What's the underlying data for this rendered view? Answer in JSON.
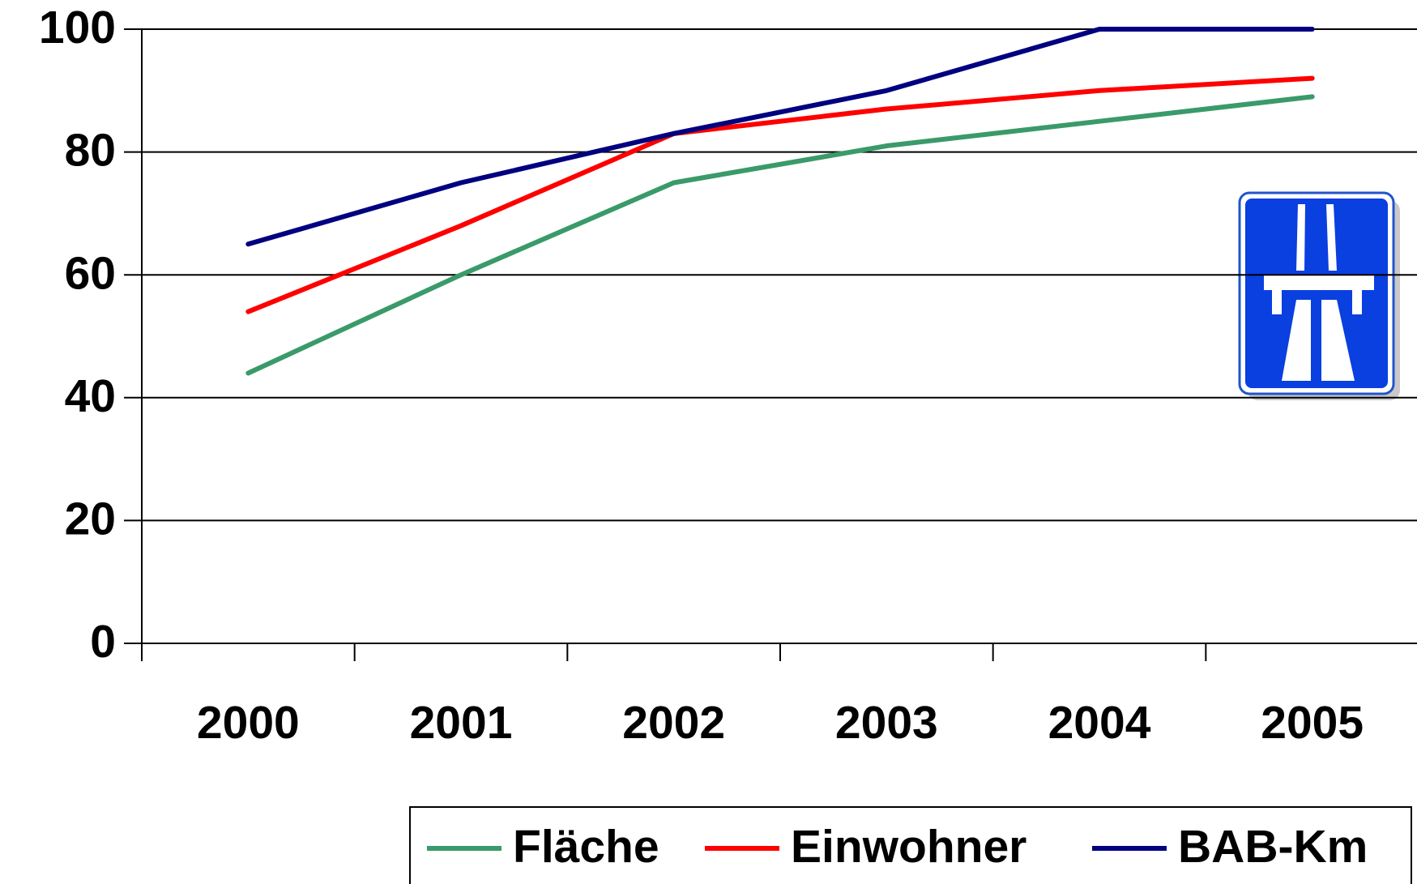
{
  "chart_data": {
    "type": "line",
    "categories": [
      "2000",
      "2001",
      "2002",
      "2003",
      "2004",
      "2005"
    ],
    "series": [
      {
        "name": "Fläche",
        "color": "#3a9a6a",
        "values": [
          44,
          60,
          75,
          81,
          85,
          89
        ]
      },
      {
        "name": "Einwohner",
        "color": "#ff0000",
        "values": [
          54,
          68,
          83,
          87,
          90,
          92
        ]
      },
      {
        "name": "BAB-Km",
        "color": "#000080",
        "values": [
          65,
          75,
          83,
          90,
          100,
          100
        ]
      }
    ],
    "ylim": [
      0,
      100
    ],
    "yticks": [
      0,
      20,
      40,
      60,
      80,
      100
    ],
    "grid": true,
    "legend": "bottom"
  }
}
